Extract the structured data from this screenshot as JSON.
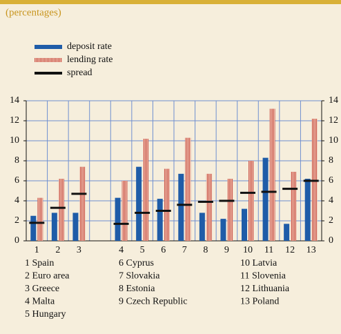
{
  "chart_data": {
    "type": "bar",
    "subtitle": "(percentages)",
    "categories": [
      "1",
      "2",
      "3",
      null,
      "4",
      "5",
      "6",
      "7",
      "8",
      "9",
      "10",
      "11",
      "12",
      "13"
    ],
    "series": [
      {
        "name": "deposit rate",
        "color": "#1f5ca8",
        "values": [
          2.5,
          2.8,
          2.8,
          null,
          4.3,
          7.4,
          4.2,
          6.7,
          2.8,
          2.2,
          3.2,
          8.3,
          1.7,
          6.2
        ]
      },
      {
        "name": "lending rate",
        "color": "#d9786a",
        "values": [
          4.3,
          6.2,
          7.4,
          null,
          6.0,
          10.2,
          7.2,
          10.3,
          6.7,
          6.2,
          8.0,
          13.2,
          6.9,
          12.2
        ]
      },
      {
        "name": "spread",
        "color": "#111111",
        "values": [
          1.8,
          3.3,
          4.7,
          null,
          1.7,
          2.8,
          3.0,
          3.6,
          3.9,
          4.0,
          4.8,
          4.9,
          5.2,
          6.0
        ]
      }
    ],
    "ylim": [
      0,
      14
    ],
    "yticks": [
      0,
      2,
      4,
      6,
      8,
      10,
      12,
      14
    ],
    "grid": true,
    "key": [
      "1 Spain",
      "2 Euro area",
      "3 Greece",
      "4 Malta",
      "5 Hungary",
      "6 Cyprus",
      "7 Slovakia",
      "8 Estonia",
      "9 Czech Republic",
      "10 Latvia",
      "11 Slovenia",
      "12 Lithuania",
      "13 Poland"
    ]
  }
}
